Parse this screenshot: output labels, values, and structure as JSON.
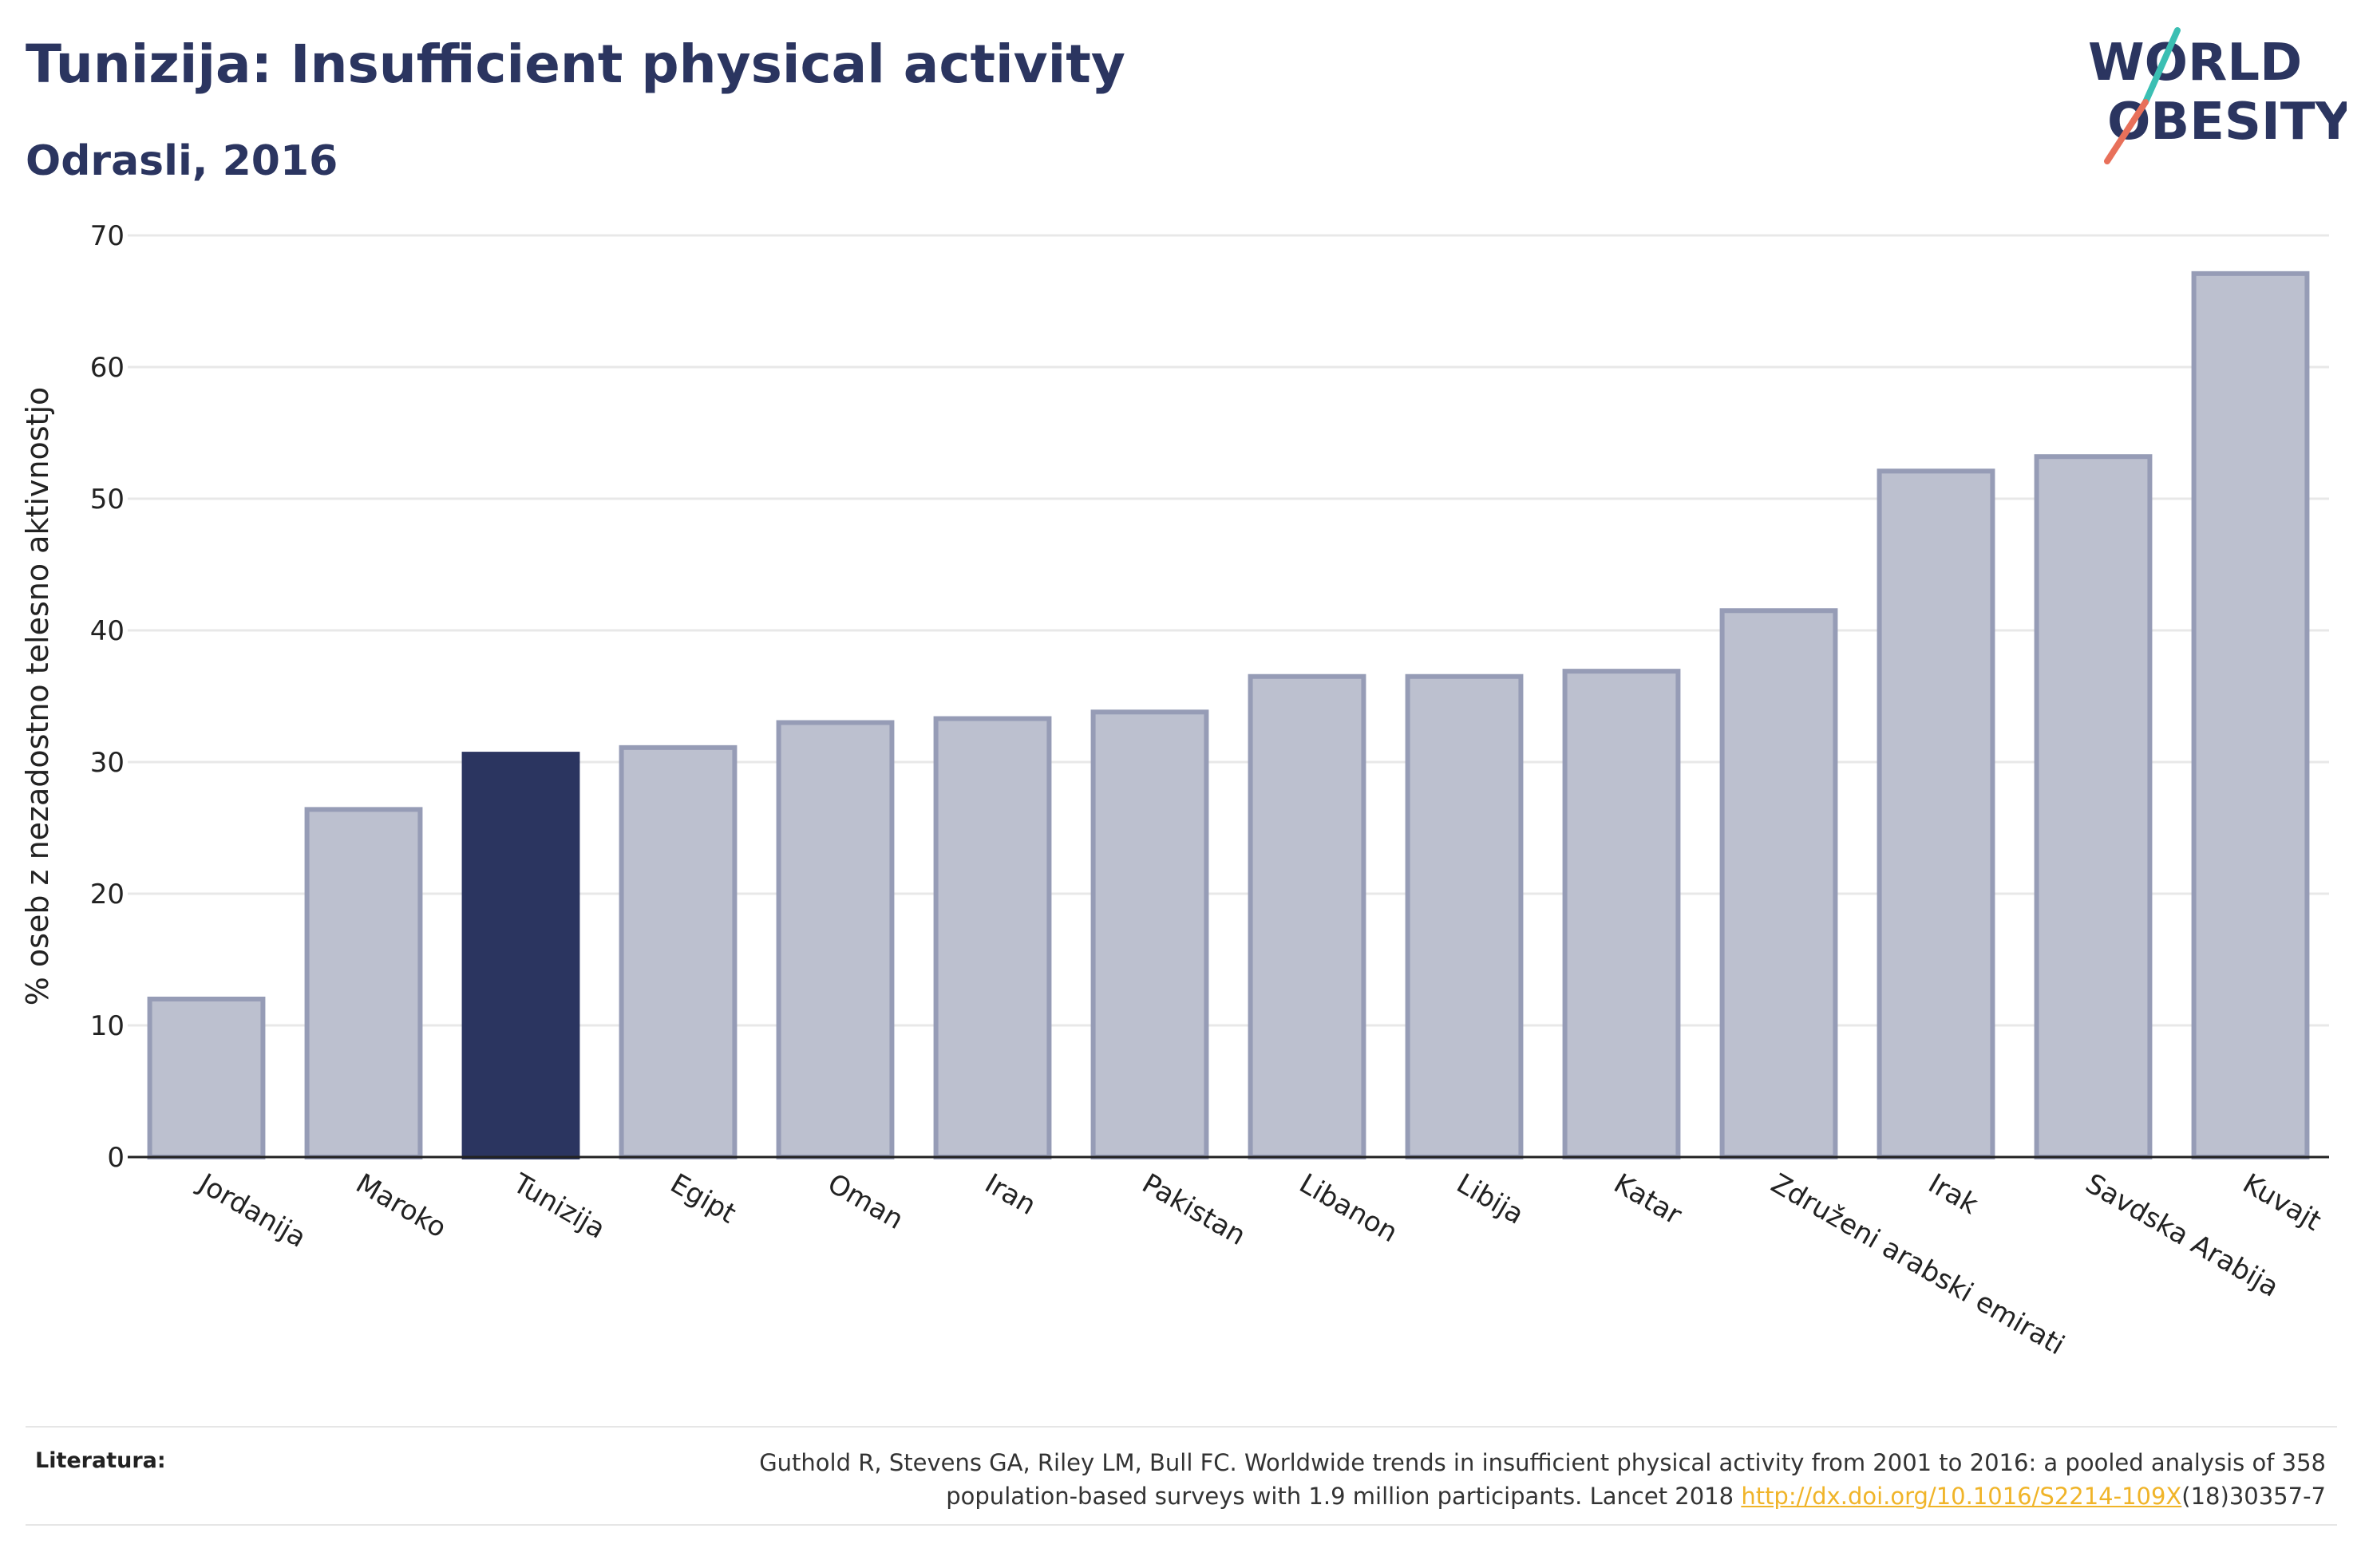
{
  "header": {
    "title": "Tunizija: Insufficient physical activity",
    "subtitle": "Odrasli, 2016"
  },
  "logo": {
    "line1": "WORLD",
    "line2": "OBESITY",
    "accent_teal": "#3bbfb3",
    "accent_coral": "#e8705a"
  },
  "colors": {
    "bar_default": "#bcc0cf",
    "bar_default_stroke": "#969cb6",
    "bar_highlight": "#2b3560",
    "grid": "#e8e8e8",
    "axis": "#222222"
  },
  "chart_data": {
    "type": "bar",
    "categories": [
      "Jordanija",
      "Maroko",
      "Tunizija",
      "Egipt",
      "Oman",
      "Iran",
      "Pakistan",
      "Libanon",
      "Libija",
      "Katar",
      "Združeni arabski emirati",
      "Irak",
      "Savdska Arabija",
      "Kuvajt"
    ],
    "values": [
      12.0,
      26.4,
      30.6,
      31.1,
      33.0,
      33.3,
      33.8,
      36.5,
      36.5,
      36.9,
      41.5,
      52.1,
      53.2,
      67.1
    ],
    "highlight": "Tunizija",
    "ylabel": "% oseb z nezadostno telesno aktivnostjo",
    "xlabel": "",
    "ylim": [
      0,
      70
    ],
    "yticks": [
      0,
      10,
      20,
      30,
      40,
      50,
      60,
      70
    ],
    "grid": true,
    "legend": "none"
  },
  "footer": {
    "label": "Literatura:",
    "reference_line1": "Guthold R, Stevens GA, Riley LM, Bull FC. Worldwide trends in insufficient physical activity from 2001 to 2016: a pooled analysis of 358",
    "reference_line2_pre": "population-based surveys with 1.9 million participants. Lancet 2018 ",
    "reference_link": "http://dx.doi.org/10.1016/S2214-109X",
    "reference_line2_post": "(18)30357-7",
    "link_color": "#f0b429"
  }
}
